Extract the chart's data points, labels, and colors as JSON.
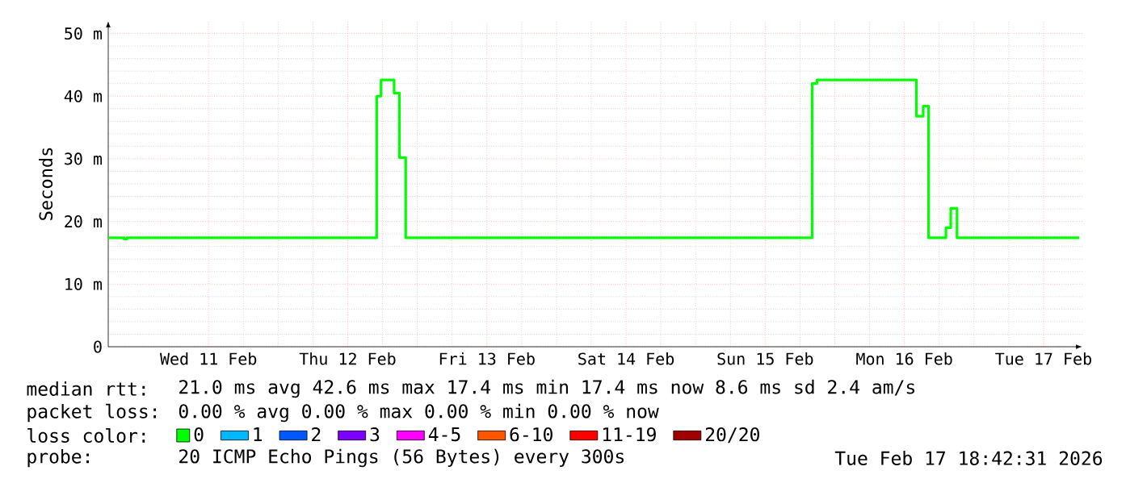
{
  "chart_data": {
    "type": "step",
    "ylabel": "Seconds",
    "legend_title": "loss color:",
    "xlim": [
      "2026-02-10T18:42",
      "2026-02-17T18:42"
    ],
    "xticks": [
      {
        "value": "2026-02-11T12:00",
        "label": "Wed 11 Feb"
      },
      {
        "value": "2026-02-12T12:00",
        "label": "Thu 12 Feb"
      },
      {
        "value": "2026-02-13T12:00",
        "label": "Fri 13 Feb"
      },
      {
        "value": "2026-02-14T12:00",
        "label": "Sat 14 Feb"
      },
      {
        "value": "2026-02-15T12:00",
        "label": "Sun 15 Feb"
      },
      {
        "value": "2026-02-16T12:00",
        "label": "Mon 16 Feb"
      },
      {
        "value": "2026-02-17T12:00",
        "label": "Tue 17 Feb"
      }
    ],
    "ylim": [
      0,
      52
    ],
    "yticks": [
      0,
      {
        "value": 10,
        "label": "10 m"
      },
      {
        "value": 20,
        "label": "20 m"
      },
      {
        "value": 30,
        "label": "30 m"
      },
      {
        "value": 40,
        "label": "40 m"
      },
      {
        "value": 50,
        "label": "50 m"
      }
    ],
    "grid": true,
    "legend": "bottom",
    "x": [
      "2026-02-10T18:45",
      "2026-02-10T21:25",
      "2026-02-10T21:55",
      "2026-02-12T17:00",
      "2026-02-12T17:45",
      "2026-02-12T20:00",
      "2026-02-12T20:55",
      "2026-02-12T22:00",
      "2026-02-15T20:05",
      "2026-02-15T20:55",
      "2026-02-16T14:05",
      "2026-02-16T15:15",
      "2026-02-16T16:10",
      "2026-02-16T19:10",
      "2026-02-16T20:00",
      "2026-02-16T21:05",
      "2026-02-17T18:10"
    ],
    "series": [
      {
        "name": "0",
        "color": "#00ff00",
        "values": [
          17.4,
          17.2,
          17.4,
          40.0,
          42.6,
          40.5,
          30.2,
          17.4,
          42.0,
          42.6,
          36.8,
          38.4,
          17.4,
          19.0,
          22.1,
          17.4,
          17.4
        ]
      },
      {
        "name": "1",
        "color": "#00b8ff",
        "values": [
          null,
          null,
          null,
          null,
          null,
          null,
          null,
          null,
          null,
          null,
          null,
          null,
          null,
          null,
          null,
          null,
          null
        ]
      },
      {
        "name": "2",
        "color": "#0059ff",
        "values": [
          null,
          null,
          null,
          null,
          null,
          null,
          null,
          null,
          null,
          null,
          null,
          null,
          null,
          null,
          null,
          null,
          null
        ]
      },
      {
        "name": "3",
        "color": "#7e00ff",
        "values": [
          null,
          null,
          null,
          null,
          null,
          null,
          null,
          null,
          null,
          null,
          null,
          null,
          null,
          null,
          null,
          null,
          null
        ]
      },
      {
        "name": "4-5",
        "color": "#ff00ff",
        "values": [
          null,
          null,
          null,
          null,
          null,
          null,
          null,
          null,
          null,
          null,
          null,
          null,
          null,
          null,
          null,
          null,
          null
        ]
      },
      {
        "name": "6-10",
        "color": "#ff5500",
        "values": [
          null,
          null,
          null,
          null,
          null,
          null,
          null,
          null,
          null,
          null,
          null,
          null,
          null,
          null,
          null,
          null,
          null
        ]
      },
      {
        "name": "11-19",
        "color": "#ff0000",
        "values": [
          null,
          null,
          null,
          null,
          null,
          null,
          null,
          null,
          null,
          null,
          null,
          null,
          null,
          null,
          null,
          null,
          null
        ]
      },
      {
        "name": "20/20",
        "color": "#a10000",
        "values": [
          null,
          null,
          null,
          null,
          null,
          null,
          null,
          null,
          null,
          null,
          null,
          null,
          null,
          null,
          null,
          null,
          null
        ]
      }
    ],
    "annotations": [
      "median rtt:",
      "21.0 ms avg  42.6 ms max  17.4 ms min  17.4 ms now  8.6 ms sd  2.4   am/s",
      "packet loss:",
      "0.00 % avg  0.00 % max  0.00 % min  0.00 % now",
      "probe:",
      "20 ICMP Echo Pings (56 Bytes) every 300s",
      "Tue Feb 17 18:42:31 2026"
    ]
  }
}
